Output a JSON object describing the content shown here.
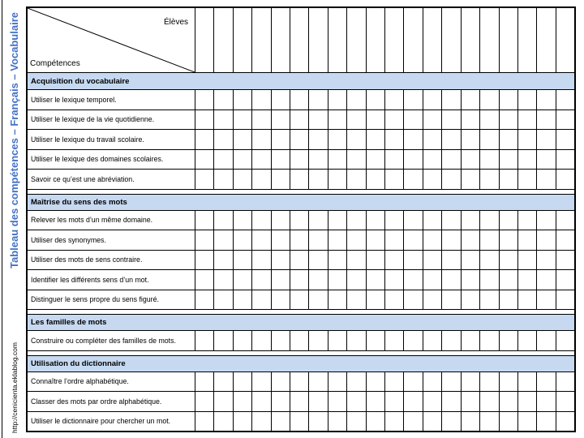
{
  "sidebar": {
    "title": "Tableau des compétences – Français – Vocabulaire",
    "url": "http://cenicienta.eklablog.com"
  },
  "table": {
    "corner": {
      "top_label": "Élèves",
      "bottom_label": "Compétences"
    },
    "column_count": 20,
    "sections": [
      {
        "title": "Acquisition du vocabulaire",
        "rows": [
          "Utiliser le lexique temporel.",
          "Utiliser le lexique de la vie quotidienne.",
          "Utiliser le lexique du travail scolaire.",
          "Utiliser le lexique des domaines scolaires.",
          "Savoir ce qu’est une abréviation."
        ]
      },
      {
        "title": "Maîtrise du sens des mots",
        "rows": [
          "Relever les mots d’un même domaine.",
          "Utiliser des synonymes.",
          "Utiliser des mots de sens contraire.",
          "Identifier les différents sens d’un mot.",
          "Distinguer le sens propre du sens figuré."
        ]
      },
      {
        "title": "Les familles de mots",
        "rows": [
          "Construire ou compléter des familles de mots."
        ]
      },
      {
        "title": "Utilisation du dictionnaire",
        "rows": [
          "Connaître l’ordre alphabétique.",
          "Classer des mots par ordre alphabétique.",
          "Utiliser le dictionnaire pour chercher un mot."
        ]
      }
    ]
  },
  "colors": {
    "section_bg": "#c6d9f1",
    "title_blue": "#4472c4",
    "border": "#000000"
  }
}
